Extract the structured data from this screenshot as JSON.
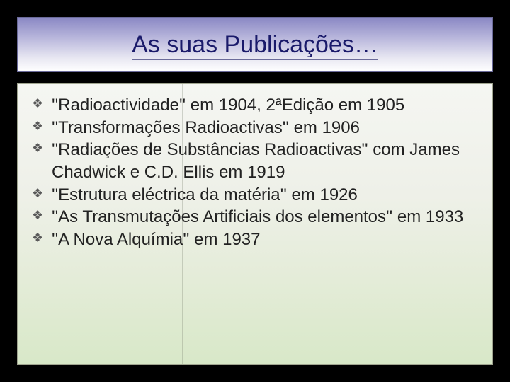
{
  "slide": {
    "title": "As suas Publicações…",
    "title_color": "#1a1a6a",
    "title_fontsize": 34,
    "title_bg_gradient": [
      "#8a88c4",
      "#b5b3da",
      "#e8e7f2",
      "#ffffff"
    ],
    "content_bg_gradient": [
      "#f5f6f2",
      "#eef0e8",
      "#e4ecd8",
      "#d8e8c8"
    ],
    "background_color": "#000000",
    "bullet_glyph": "❖",
    "bullet_color": "#5a5a5a",
    "body_fontsize": 24,
    "body_color": "#222222",
    "items": [
      "''Radioactividade'' em 1904, 2ªEdição em 1905",
      "''Transformações Radioactivas'' em 1906",
      "''Radiações de Substâncias Radioactivas'' com James Chadwick e C.D. Ellis em 1919",
      "''Estrutura eléctrica da matéria'' em 1926",
      "''As Transmutações Artificiais dos elementos'' em 1933",
      "''A Nova Alquímia'' em 1937"
    ]
  }
}
